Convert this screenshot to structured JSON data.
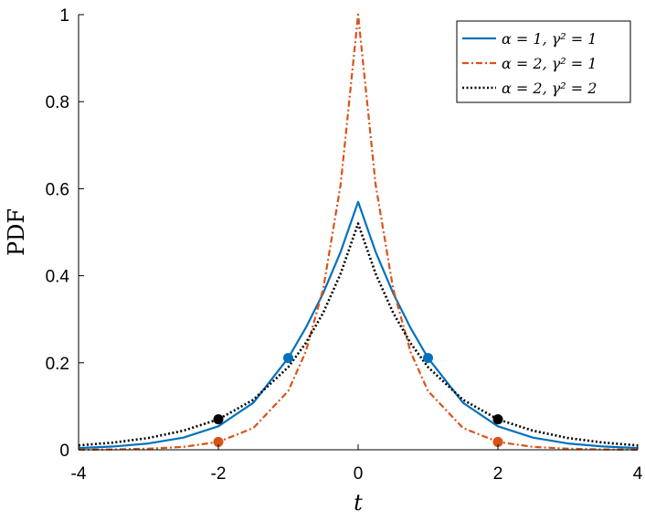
{
  "chart_data": {
    "type": "line",
    "xlabel": "t",
    "ylabel": "PDF",
    "xlim": [
      -4,
      4
    ],
    "ylim": [
      0,
      1
    ],
    "xticks": [
      -4,
      -2,
      0,
      2,
      4
    ],
    "yticks": [
      0,
      0.2,
      0.4,
      0.6,
      0.8,
      1
    ],
    "xtick_labels": [
      "-4",
      "-2",
      "0",
      "2",
      "4"
    ],
    "ytick_labels": [
      "0",
      "0.2",
      "0.4",
      "0.6",
      "0.8",
      "1"
    ],
    "grid": false,
    "legend_position": "top-right",
    "t": [
      -4.0,
      -3.5,
      -3.0,
      -2.5,
      -2.0,
      -1.5,
      -1.0,
      -0.75,
      -0.5,
      -0.25,
      0.0,
      0.25,
      0.5,
      0.75,
      1.0,
      1.5,
      2.0,
      2.5,
      3.0,
      3.5,
      4.0
    ],
    "series": [
      {
        "name": "α = 1,  γ² = 1",
        "color": "#0072BD",
        "dash": "solid",
        "values": [
          0.004,
          0.0075,
          0.0145,
          0.028,
          0.054,
          0.108,
          0.211,
          0.28,
          0.36,
          0.455,
          0.57,
          0.455,
          0.36,
          0.28,
          0.211,
          0.108,
          0.054,
          0.028,
          0.0145,
          0.0075,
          0.004
        ],
        "markers": [
          {
            "t": -1,
            "y": 0.211
          },
          {
            "t": 1,
            "y": 0.211
          }
        ]
      },
      {
        "name": "α = 2,  γ² = 1",
        "color": "#D95319",
        "dash": "dashdot",
        "values": [
          0.0003,
          0.0009,
          0.0025,
          0.0067,
          0.018,
          0.05,
          0.135,
          0.225,
          0.37,
          0.61,
          1.0,
          0.61,
          0.37,
          0.225,
          0.135,
          0.05,
          0.018,
          0.0067,
          0.0025,
          0.0009,
          0.0003
        ],
        "markers": [
          {
            "t": -2,
            "y": 0.018
          },
          {
            "t": 2,
            "y": 0.018
          }
        ]
      },
      {
        "name": "α = 2,  γ² = 2",
        "color": "#000000",
        "dash": "dotted",
        "values": [
          0.01,
          0.0165,
          0.027,
          0.044,
          0.07,
          0.115,
          0.19,
          0.245,
          0.315,
          0.405,
          0.52,
          0.405,
          0.315,
          0.245,
          0.19,
          0.115,
          0.07,
          0.044,
          0.027,
          0.0165,
          0.01
        ],
        "markers": [
          {
            "t": -2,
            "y": 0.07
          },
          {
            "t": 2,
            "y": 0.07
          }
        ]
      }
    ]
  }
}
